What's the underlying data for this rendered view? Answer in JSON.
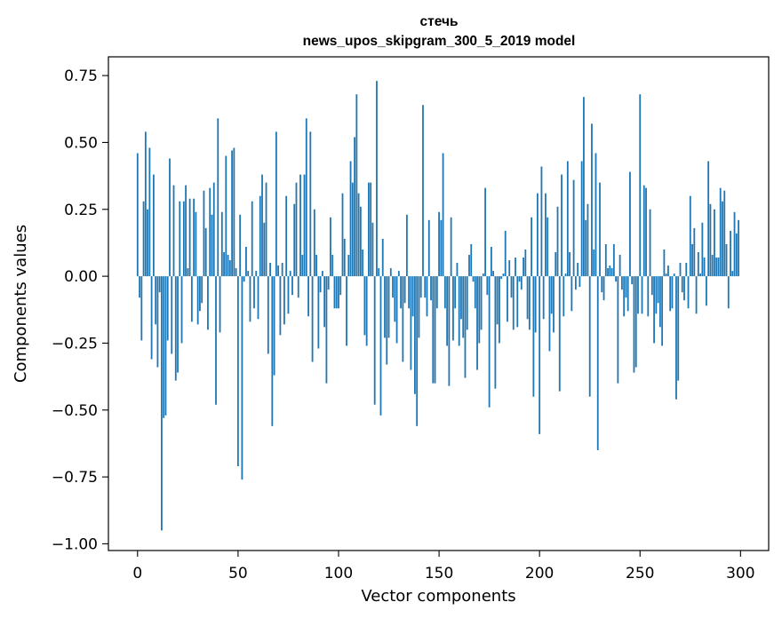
{
  "chart_data": {
    "type": "bar",
    "title_lines": [
      "стечь",
      "news_upos_skipgram_300_5_2019 model"
    ],
    "xlabel": "Vector components",
    "ylabel": "Components values",
    "xlim": [
      -14.5,
      314
    ],
    "ylim": [
      -1.025,
      0.82
    ],
    "xticks": [
      0,
      50,
      100,
      150,
      200,
      250,
      300
    ],
    "xtick_labels": [
      "0",
      "50",
      "100",
      "150",
      "200",
      "250",
      "300"
    ],
    "yticks": [
      -1.0,
      -0.75,
      -0.5,
      -0.25,
      0.0,
      0.25,
      0.5,
      0.75
    ],
    "ytick_labels": [
      "−1.00",
      "−0.75",
      "−0.50",
      "−0.25",
      "0.00",
      "0.25",
      "0.50",
      "0.75"
    ],
    "bar_color": "#1f77b4",
    "grid": false,
    "values": [
      0.46,
      -0.08,
      -0.24,
      0.28,
      0.54,
      0.25,
      0.48,
      -0.31,
      0.38,
      -0.18,
      -0.34,
      -0.06,
      -0.95,
      -0.53,
      -0.52,
      -0.24,
      0.44,
      -0.29,
      0.34,
      -0.39,
      -0.36,
      0.28,
      -0.25,
      0.28,
      0.34,
      0.03,
      0.29,
      -0.17,
      0.29,
      0.24,
      -0.18,
      -0.13,
      -0.1,
      0.32,
      0.18,
      -0.2,
      0.33,
      0.23,
      0.35,
      -0.48,
      0.59,
      -0.21,
      0.24,
      0.09,
      0.45,
      0.08,
      0.06,
      0.47,
      0.48,
      0.03,
      -0.71,
      0.23,
      -0.76,
      -0.02,
      0.11,
      0.02,
      -0.17,
      0.28,
      -0.12,
      0.02,
      -0.16,
      0.3,
      0.38,
      0.2,
      0.35,
      -0.29,
      0.05,
      -0.56,
      -0.37,
      0.54,
      0.04,
      -0.22,
      0.05,
      -0.18,
      0.3,
      -0.14,
      0.02,
      -0.07,
      0.27,
      0.35,
      -0.08,
      0.38,
      0.08,
      0.38,
      0.59,
      -0.15,
      0.54,
      -0.32,
      0.25,
      0.08,
      -0.27,
      -0.06,
      0.02,
      -0.19,
      -0.4,
      -0.05,
      0.22,
      0.08,
      -0.12,
      -0.12,
      -0.12,
      -0.07,
      0.31,
      0.14,
      -0.26,
      0.08,
      0.43,
      0.35,
      0.52,
      0.68,
      0.31,
      0.26,
      0.1,
      -0.22,
      -0.26,
      0.35,
      0.35,
      0.2,
      -0.48,
      0.73,
      0.03,
      -0.52,
      0.14,
      -0.23,
      -0.33,
      -0.23,
      0.03,
      -0.08,
      -0.17,
      -0.25,
      0.02,
      -0.12,
      -0.32,
      -0.1,
      0.23,
      -0.12,
      -0.35,
      -0.15,
      -0.44,
      -0.56,
      -0.23,
      -0.08,
      0.64,
      -0.08,
      -0.15,
      0.21,
      -0.09,
      -0.4,
      -0.4,
      -0.12,
      0.24,
      0.21,
      0.46,
      -0.12,
      -0.26,
      -0.41,
      0.22,
      -0.24,
      -0.12,
      0.05,
      -0.26,
      -0.16,
      -0.23,
      -0.38,
      -0.2,
      0.08,
      0.12,
      -0.02,
      -0.12,
      -0.35,
      -0.25,
      -0.2,
      0.01,
      0.33,
      -0.07,
      -0.49,
      0.11,
      0.02,
      -0.42,
      -0.18,
      -0.25,
      -0.01,
      0.01,
      0.17,
      -0.17,
      0.06,
      -0.08,
      -0.2,
      0.07,
      -0.19,
      -0.02,
      -0.05,
      0.07,
      0.1,
      -0.16,
      -0.2,
      0.22,
      -0.45,
      -0.21,
      0.31,
      -0.59,
      0.41,
      -0.16,
      0.31,
      0.22,
      -0.28,
      -0.14,
      -0.21,
      0.09,
      0.26,
      -0.43,
      0.38,
      -0.15,
      0.01,
      0.43,
      0.09,
      -0.13,
      0.36,
      -0.05,
      0.05,
      -0.04,
      0.43,
      0.67,
      0.21,
      0.27,
      -0.45,
      0.57,
      0.1,
      0.46,
      -0.65,
      0.35,
      -0.06,
      -0.09,
      0.12,
      0.03,
      0.04,
      0.03,
      0.12,
      -0.02,
      -0.4,
      0.08,
      -0.05,
      -0.15,
      -0.08,
      -0.13,
      0.39,
      -0.03,
      -0.36,
      -0.34,
      -0.14,
      0.68,
      -0.14,
      0.34,
      0.33,
      -0.15,
      0.25,
      -0.07,
      -0.25,
      -0.14,
      -0.1,
      -0.19,
      -0.26,
      0.1,
      0.01,
      0.04,
      -0.13,
      -0.12,
      0.01,
      -0.46,
      -0.39,
      0.05,
      -0.06,
      -0.09,
      0.05,
      -0.12,
      0.3,
      0.12,
      0.18,
      -0.14,
      0.09,
      0.01,
      0.2,
      0.07,
      -0.11,
      0.43,
      0.27,
      0.08,
      0.25,
      0.07,
      0.07,
      0.33,
      0.28,
      0.32,
      0.12,
      -0.12,
      0.17,
      0.02,
      0.24,
      0.16,
      0.21
    ]
  }
}
